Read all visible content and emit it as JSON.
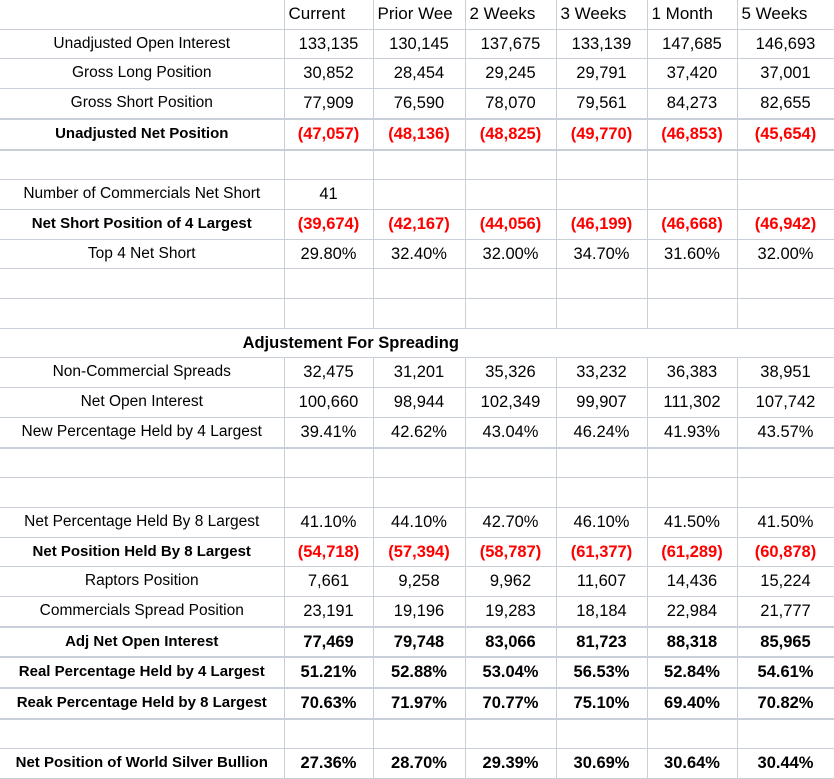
{
  "columns": [
    "Current",
    "Prior Wee",
    "2 Weeks",
    "3 Weeks",
    "1 Month",
    "5 Weeks"
  ],
  "rows": [
    {
      "label": "Unadjusted Open Interest",
      "values": [
        "133,135",
        "130,145",
        "137,675",
        "133,139",
        "147,685",
        "146,693"
      ]
    },
    {
      "label": "Gross Long Position",
      "values": [
        "30,852",
        "28,454",
        "29,245",
        "29,791",
        "37,420",
        "37,001"
      ]
    },
    {
      "label": "Gross Short Position",
      "values": [
        "77,909",
        "76,590",
        "78,070",
        "79,561",
        "84,273",
        "82,655"
      ]
    },
    {
      "label": "Unadjusted Net Position",
      "values": [
        "(47,057)",
        "(48,136)",
        "(48,825)",
        "(49,770)",
        "(46,853)",
        "(45,654)"
      ]
    },
    {
      "label": "Number of Commercials Net Short",
      "values": [
        "41"
      ]
    },
    {
      "label": "Net Short Position of 4 Largest",
      "values": [
        "(39,674)",
        "(42,167)",
        "(44,056)",
        "(46,199)",
        "(46,668)",
        "(46,942)"
      ]
    },
    {
      "label": "Top 4 Net Short",
      "values": [
        "29.80%",
        "32.40%",
        "32.00%",
        "34.70%",
        "31.60%",
        "32.00%"
      ]
    },
    {
      "section": "Adjustement For Spreading"
    },
    {
      "label": "Non-Commercial Spreads",
      "values": [
        "32,475",
        "31,201",
        "35,326",
        "33,232",
        "36,383",
        "38,951"
      ]
    },
    {
      "label": "Net Open Interest",
      "values": [
        "100,660",
        "98,944",
        "102,349",
        "99,907",
        "111,302",
        "107,742"
      ]
    },
    {
      "label": "New Percentage Held by 4 Largest",
      "values": [
        "39.41%",
        "42.62%",
        "43.04%",
        "46.24%",
        "41.93%",
        "43.57%"
      ]
    },
    {
      "label": "Net Percentage Held By 8 Largest",
      "values": [
        "41.10%",
        "44.10%",
        "42.70%",
        "46.10%",
        "41.50%",
        "41.50%"
      ]
    },
    {
      "label": "Net Position Held By 8 Largest",
      "values": [
        "(54,718)",
        "(57,394)",
        "(58,787)",
        "(61,377)",
        "(61,289)",
        "(60,878)"
      ]
    },
    {
      "label": "Raptors Position",
      "values": [
        "7,661",
        "9,258",
        "9,962",
        "11,607",
        "14,436",
        "15,224"
      ]
    },
    {
      "label": "Commercials Spread Position",
      "values": [
        "23,191",
        "19,196",
        "19,283",
        "18,184",
        "22,984",
        "21,777"
      ]
    },
    {
      "label": "Adj Net Open Interest",
      "values": [
        "77,469",
        "79,748",
        "83,066",
        "81,723",
        "88,318",
        "85,965"
      ]
    },
    {
      "label": "Real Percentage Held by 4 Largest",
      "values": [
        "51.21%",
        "52.88%",
        "53.04%",
        "56.53%",
        "52.84%",
        "54.61%"
      ]
    },
    {
      "label": "Reak Percentage Held by 8 Largest",
      "values": [
        "70.63%",
        "71.97%",
        "70.77%",
        "75.10%",
        "69.40%",
        "70.82%"
      ]
    },
    {
      "label": "Net Position of World Silver Bullion",
      "values": [
        "27.36%",
        "28.70%",
        "29.39%",
        "30.69%",
        "30.64%",
        "30.44%"
      ]
    }
  ],
  "colors": {
    "negative": "#ff0000",
    "gridline": "#c8cfd8"
  }
}
